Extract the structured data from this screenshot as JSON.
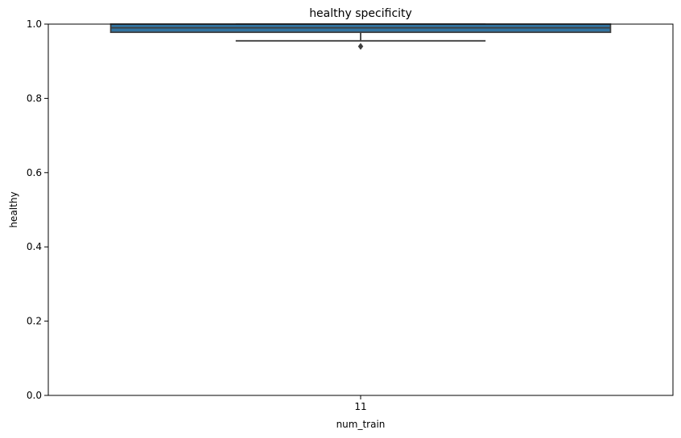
{
  "chart_data": {
    "type": "box",
    "title": "healthy specificity",
    "xlabel": "num_train",
    "ylabel": "healthy",
    "ylim": [
      0.0,
      1.0
    ],
    "yticks": [
      "0.0",
      "0.2",
      "0.4",
      "0.6",
      "0.8",
      "1.0"
    ],
    "categories": [
      "11"
    ],
    "boxes": [
      {
        "category": "11",
        "whisker_low": 0.955,
        "q1": 0.978,
        "median": 0.99,
        "q3": 1.0,
        "whisker_high": 1.0,
        "outliers": [
          0.94
        ]
      }
    ],
    "box_color": "#3274a1",
    "edge_color": "#3f3f3f",
    "grid": false,
    "legend": "none"
  }
}
